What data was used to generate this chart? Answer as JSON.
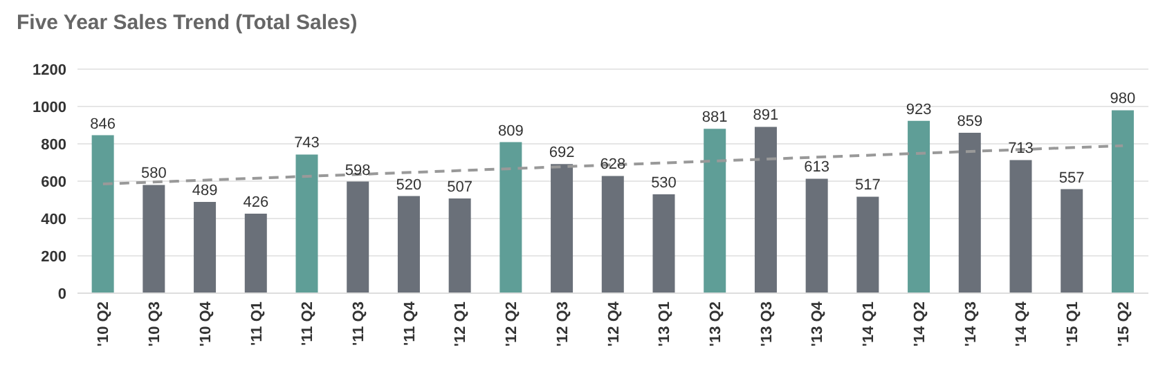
{
  "chart_data": {
    "type": "bar",
    "title": "Five Year Sales Trend (Total Sales)",
    "categories": [
      "'10 Q2",
      "'10 Q3",
      "'10 Q4",
      "'11 Q1",
      "'11 Q2",
      "'11 Q3",
      "'11 Q4",
      "'12 Q1",
      "'12 Q2",
      "'12 Q3",
      "'12 Q4",
      "'13 Q1",
      "'13 Q2",
      "'13 Q3",
      "'13 Q4",
      "'14 Q1",
      "'14 Q2",
      "'14 Q3",
      "'14 Q4",
      "'15 Q1",
      "'15 Q2"
    ],
    "series": [
      {
        "values": [
          846,
          580,
          489,
          426,
          743,
          598,
          520,
          507,
          809,
          692,
          628,
          530,
          881,
          891,
          613,
          517,
          923,
          859,
          713,
          557,
          980
        ],
        "value_labels": [
          "846",
          "580",
          "489",
          "426",
          "743",
          "598",
          "520",
          "507",
          "809",
          "692",
          "628",
          "530",
          "881",
          "891",
          "613",
          "517",
          "923",
          "859",
          "713",
          "557",
          "980"
        ],
        "colors": [
          "#5f9e97",
          "#6a7079",
          "#6a7079",
          "#6a7079",
          "#5f9e97",
          "#6a7079",
          "#6a7079",
          "#6a7079",
          "#5f9e97",
          "#6a7079",
          "#6a7079",
          "#6a7079",
          "#5f9e97",
          "#6a7079",
          "#6a7079",
          "#6a7079",
          "#5f9e97",
          "#6a7079",
          "#6a7079",
          "#6a7079",
          "#5f9e97"
        ]
      },
      {
        "type": "line",
        "x": [
          "'10 Q2",
          "'15 Q2"
        ],
        "values": [
          585,
          790
        ],
        "color": "#999999",
        "line_style": "dashed"
      }
    ],
    "ylim": [
      0,
      1200
    ],
    "yticks": [
      0,
      200,
      400,
      600,
      800,
      1000,
      1200
    ],
    "grid": "y"
  }
}
